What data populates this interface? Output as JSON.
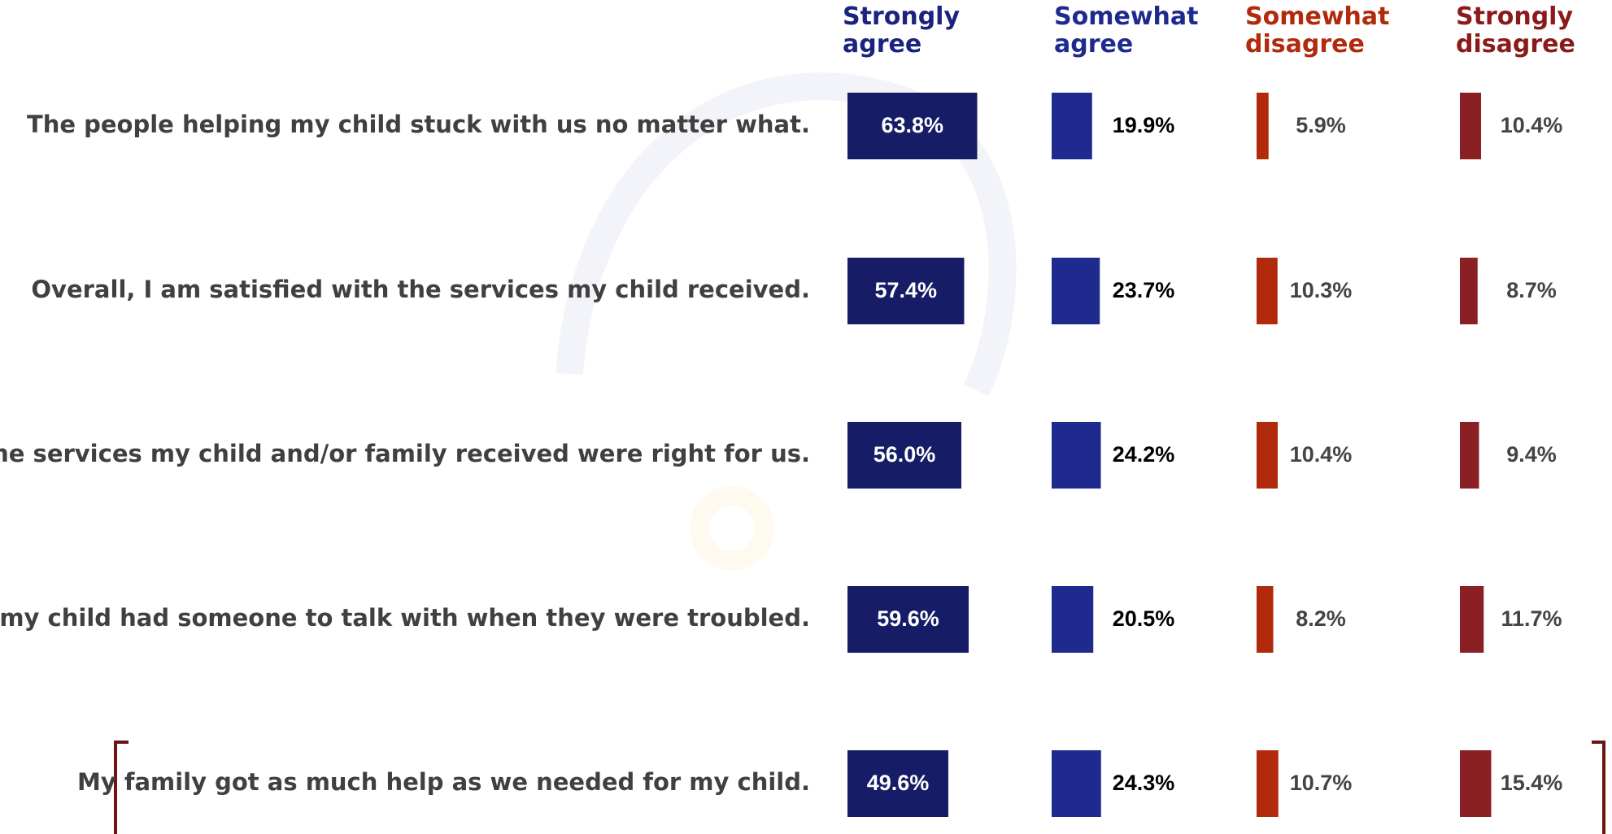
{
  "chart_data": {
    "type": "bar",
    "categories": [
      "The people helping my child stuck with us no matter what.",
      "Overall, I am satisfied with the services my child received.",
      "The services my child and/or family received were right for us.",
      "I felt my child had someone to talk with when they were troubled.",
      "My family got as much help as we needed for my child."
    ],
    "series": [
      {
        "name": "Strongly agree",
        "color": "#161d66",
        "values": [
          63.8,
          57.4,
          56.0,
          59.6,
          49.6
        ],
        "value_labels": [
          "63.8%",
          "57.4%",
          "56.0%",
          "59.6%",
          "49.6%"
        ]
      },
      {
        "name": "Somewhat agree",
        "color": "#1f2a8f",
        "values": [
          19.9,
          23.7,
          24.2,
          20.5,
          24.3
        ],
        "value_labels": [
          "19.9%",
          "23.7%",
          "24.2%",
          "20.5%",
          "24.3%"
        ]
      },
      {
        "name": "Somewhat disagree",
        "color": "#b22a0c",
        "values": [
          5.9,
          10.3,
          10.4,
          8.2,
          10.7
        ],
        "value_labels": [
          "5.9%",
          "10.3%",
          "10.4%",
          "8.2%",
          "10.7%"
        ]
      },
      {
        "name": "Strongly disagree",
        "color": "#8b2024",
        "values": [
          10.4,
          8.7,
          9.4,
          11.7,
          15.4
        ],
        "value_labels": [
          "10.4%",
          "8.7%",
          "9.4%",
          "11.7%",
          "15.4%"
        ]
      }
    ]
  }
}
